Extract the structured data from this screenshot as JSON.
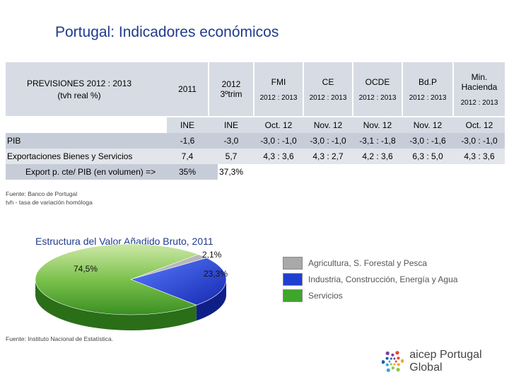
{
  "title": "Portugal: Indicadores económicos",
  "table": {
    "prev_label_line1": "PREVISIONES 2012 : 2013",
    "prev_label_line2": "(tvh real %)",
    "columns": [
      {
        "main": "2011",
        "sub": ""
      },
      {
        "main": "2012\n3ºtrim",
        "sub": ""
      },
      {
        "main": "FMI",
        "sub": "2012 : 2013"
      },
      {
        "main": "CE",
        "sub": "2012 : 2013"
      },
      {
        "main": "OCDE",
        "sub": "2012 : 2013"
      },
      {
        "main": "Bd.P",
        "sub": "2012 : 2013"
      },
      {
        "main": "Min.\nHacienda",
        "sub": "2012 : 2013"
      }
    ],
    "sources_row": [
      "INE",
      "INE",
      "Oct. 12",
      "Nov. 12",
      "Nov. 12",
      "Nov. 12",
      "Oct. 12"
    ],
    "rows": [
      {
        "label": "PIB",
        "values": [
          "-1,6",
          "-3,0",
          "-3,0 : -1,0",
          "-3,0 : -1,0",
          "-3,1 : -1,8",
          "-3,0 : -1,6",
          "-3,0 : -1,0"
        ]
      },
      {
        "label": "Exportaciones Bienes y Servicios",
        "values": [
          "7,4",
          "5,7",
          "4,3 : 3,6",
          "4,3 : 2,7",
          "4,2 : 3,6",
          "6,3 : 5,0",
          "4,3 : 3,6"
        ]
      },
      {
        "label": "Export p. cte/ PIB (en volumen) =>",
        "values": [
          "35%",
          "37,3%"
        ]
      }
    ],
    "source_line1": "Fuente: Banco de Portugal",
    "source_line2": "tvh - tasa de variación homóloga"
  },
  "pie": {
    "title": "Estructura del Valor Añadido Bruto, 2011",
    "label_agri": "2,1%",
    "label_ind": "23,3%",
    "label_serv": "74,5%",
    "source": "Fuente: Instituto Nacional de Estatística."
  },
  "chart_data": {
    "type": "pie",
    "title": "Estructura del Valor Añadido Bruto, 2011",
    "categories": [
      "Agricultura,  S. Forestal y Pesca",
      "Industria, Construcción, Energía y Agua",
      "Servicios"
    ],
    "values": [
      2.1,
      23.3,
      74.5
    ],
    "colors": [
      "#a9a9a9",
      "#1f3fd0",
      "#3fa62b"
    ],
    "legend_position": "right"
  },
  "colors": {
    "title": "#1f3c8c",
    "header_bg": "#d7dbe3",
    "row_pib": "#c7cdd8",
    "row_export": "#e2e5ea",
    "row_sources": "#d7dbe3"
  },
  "logo": {
    "text": "aicep Portugal Global"
  }
}
